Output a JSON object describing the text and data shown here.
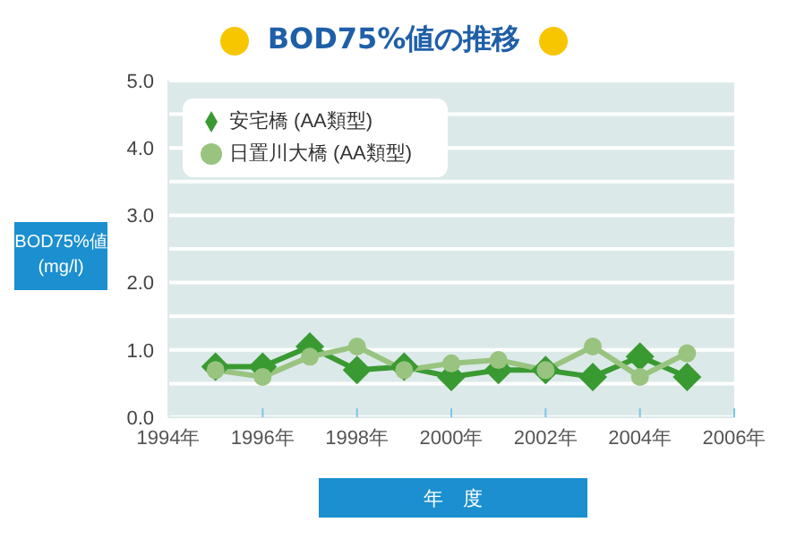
{
  "chart_data": {
    "type": "line",
    "title": "BOD75%値の推移",
    "xlabel": "年　度",
    "ylabel": "BOD75%値\n(mg/l)",
    "x": [
      1995,
      1996,
      1997,
      1998,
      1999,
      2000,
      2001,
      2002,
      2003,
      2004,
      2005
    ],
    "series": [
      {
        "name": "安宅橋 (AA類型)",
        "color": "#3a9a32",
        "marker": "diamond",
        "values": [
          0.75,
          0.75,
          1.05,
          0.7,
          0.75,
          0.6,
          0.7,
          0.7,
          0.6,
          0.9,
          0.6
        ]
      },
      {
        "name": "日置川大橋 (AA類型)",
        "color": "#98c47f",
        "marker": "circle",
        "values": [
          0.7,
          0.6,
          0.9,
          1.05,
          0.7,
          0.8,
          0.85,
          0.7,
          1.05,
          0.6,
          0.95
        ]
      }
    ],
    "xlim": [
      1994,
      2006
    ],
    "xticks": [
      {
        "value": 1994,
        "label": "1994年"
      },
      {
        "value": 1996,
        "label": "1996年"
      },
      {
        "value": 1998,
        "label": "1998年"
      },
      {
        "value": 2000,
        "label": "2000年"
      },
      {
        "value": 2002,
        "label": "2002年"
      },
      {
        "value": 2004,
        "label": "2004年"
      },
      {
        "value": 2006,
        "label": "2006年"
      }
    ],
    "ylim": [
      0,
      5
    ],
    "yticks": [
      {
        "value": 0,
        "label": "0.0"
      },
      {
        "value": 0.5,
        "label": null
      },
      {
        "value": 1,
        "label": "1.0"
      },
      {
        "value": 1.5,
        "label": null
      },
      {
        "value": 2,
        "label": "2.0"
      },
      {
        "value": 2.5,
        "label": null
      },
      {
        "value": 3,
        "label": "3.0"
      },
      {
        "value": 3.5,
        "label": null
      },
      {
        "value": 4,
        "label": "4.0"
      },
      {
        "value": 4.5,
        "label": null
      },
      {
        "value": 5,
        "label": "5.0"
      }
    ],
    "grid": "y",
    "legend": "top left"
  }
}
